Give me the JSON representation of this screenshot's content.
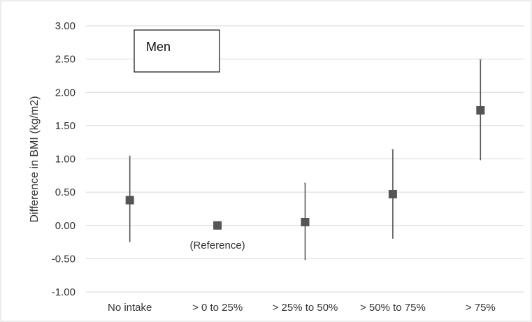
{
  "chart_data": {
    "type": "scatter",
    "panel_label": "Men",
    "ylabel": "Difference in BMI (kg/m2)",
    "xlabel": "",
    "ylim": [
      -1.0,
      3.0
    ],
    "ytick_step": 0.5,
    "y_tick_labels": [
      "-1.00",
      "-0.50",
      "0.00",
      "0.50",
      "1.00",
      "1.50",
      "2.00",
      "2.50",
      "3.00"
    ],
    "categories": [
      "No intake",
      "> 0 to 25%",
      "> 25% to 50%",
      "> 50% to 75%",
      "> 75%"
    ],
    "values": [
      0.38,
      0.0,
      0.05,
      0.47,
      1.73
    ],
    "lower": [
      -0.25,
      null,
      -0.52,
      -0.2,
      0.98
    ],
    "upper": [
      1.04,
      null,
      0.63,
      1.14,
      2.49
    ],
    "annotations": [
      {
        "category": "> 0 to 25%",
        "text": "(Reference)"
      }
    ],
    "grid": true,
    "marker": "square",
    "colors": {
      "marker": "#555555",
      "errorbar": "#555555",
      "grid": "#d9d9d9",
      "text": "#333333"
    }
  }
}
